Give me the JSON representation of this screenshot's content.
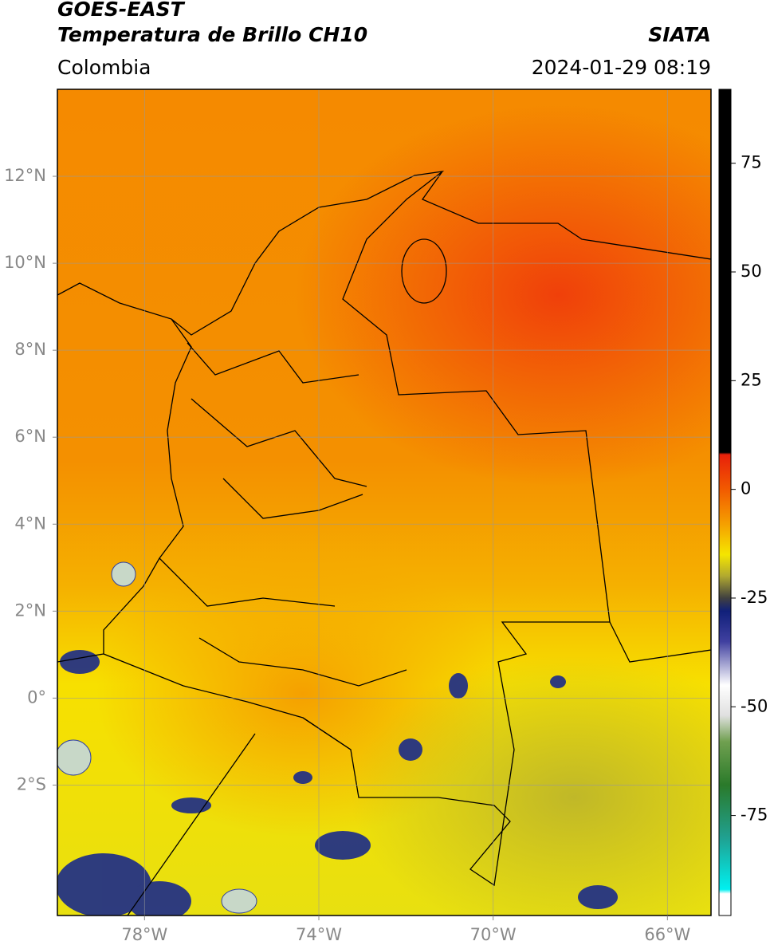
{
  "header": {
    "title": "GOES-EAST",
    "subtitle": "Temperatura de Brillo CH10",
    "region": "Colombia",
    "source": "SIATA",
    "datetime": "2024-01-29 08:19"
  },
  "map": {
    "xlim": [
      -80,
      -65
    ],
    "ylim": [
      -5,
      14
    ],
    "xticks": [
      {
        "value": -78,
        "label": "78°W"
      },
      {
        "value": -74,
        "label": "74°W"
      },
      {
        "value": -70,
        "label": "70°W"
      },
      {
        "value": -66,
        "label": "66°W"
      }
    ],
    "yticks": [
      {
        "value": 12,
        "label": "12°N"
      },
      {
        "value": 10,
        "label": "10°N"
      },
      {
        "value": 8,
        "label": "8°N"
      },
      {
        "value": 6,
        "label": "6°N"
      },
      {
        "value": 4,
        "label": "4°N"
      },
      {
        "value": 2,
        "label": "2°N"
      },
      {
        "value": 0,
        "label": "0°"
      },
      {
        "value": -2,
        "label": "2°S"
      }
    ],
    "grid": true
  },
  "colorbar": {
    "lim": [
      -98,
      92
    ],
    "ticks": [
      75,
      50,
      25,
      0,
      -25,
      -50,
      -75
    ],
    "stops": [
      {
        "value": 92,
        "color": "#000000"
      },
      {
        "value": 8.5,
        "color": "#000000"
      },
      {
        "value": 8,
        "color": "#e8200a"
      },
      {
        "value": 0,
        "color": "#f25a00"
      },
      {
        "value": -8,
        "color": "#f5a000"
      },
      {
        "value": -15,
        "color": "#f5e600"
      },
      {
        "value": -20,
        "color": "#b0a830"
      },
      {
        "value": -25,
        "color": "#404040"
      },
      {
        "value": -28,
        "color": "#10207a"
      },
      {
        "value": -35,
        "color": "#4040a0"
      },
      {
        "value": -45,
        "color": "#ffffff"
      },
      {
        "value": -52,
        "color": "#e0e0e0"
      },
      {
        "value": -58,
        "color": "#70a050"
      },
      {
        "value": -68,
        "color": "#2a7a2a"
      },
      {
        "value": -80,
        "color": "#20a090"
      },
      {
        "value": -92,
        "color": "#00f0f0"
      },
      {
        "value": -93,
        "color": "#ffffff"
      },
      {
        "value": -98,
        "color": "#ffffff"
      }
    ]
  }
}
